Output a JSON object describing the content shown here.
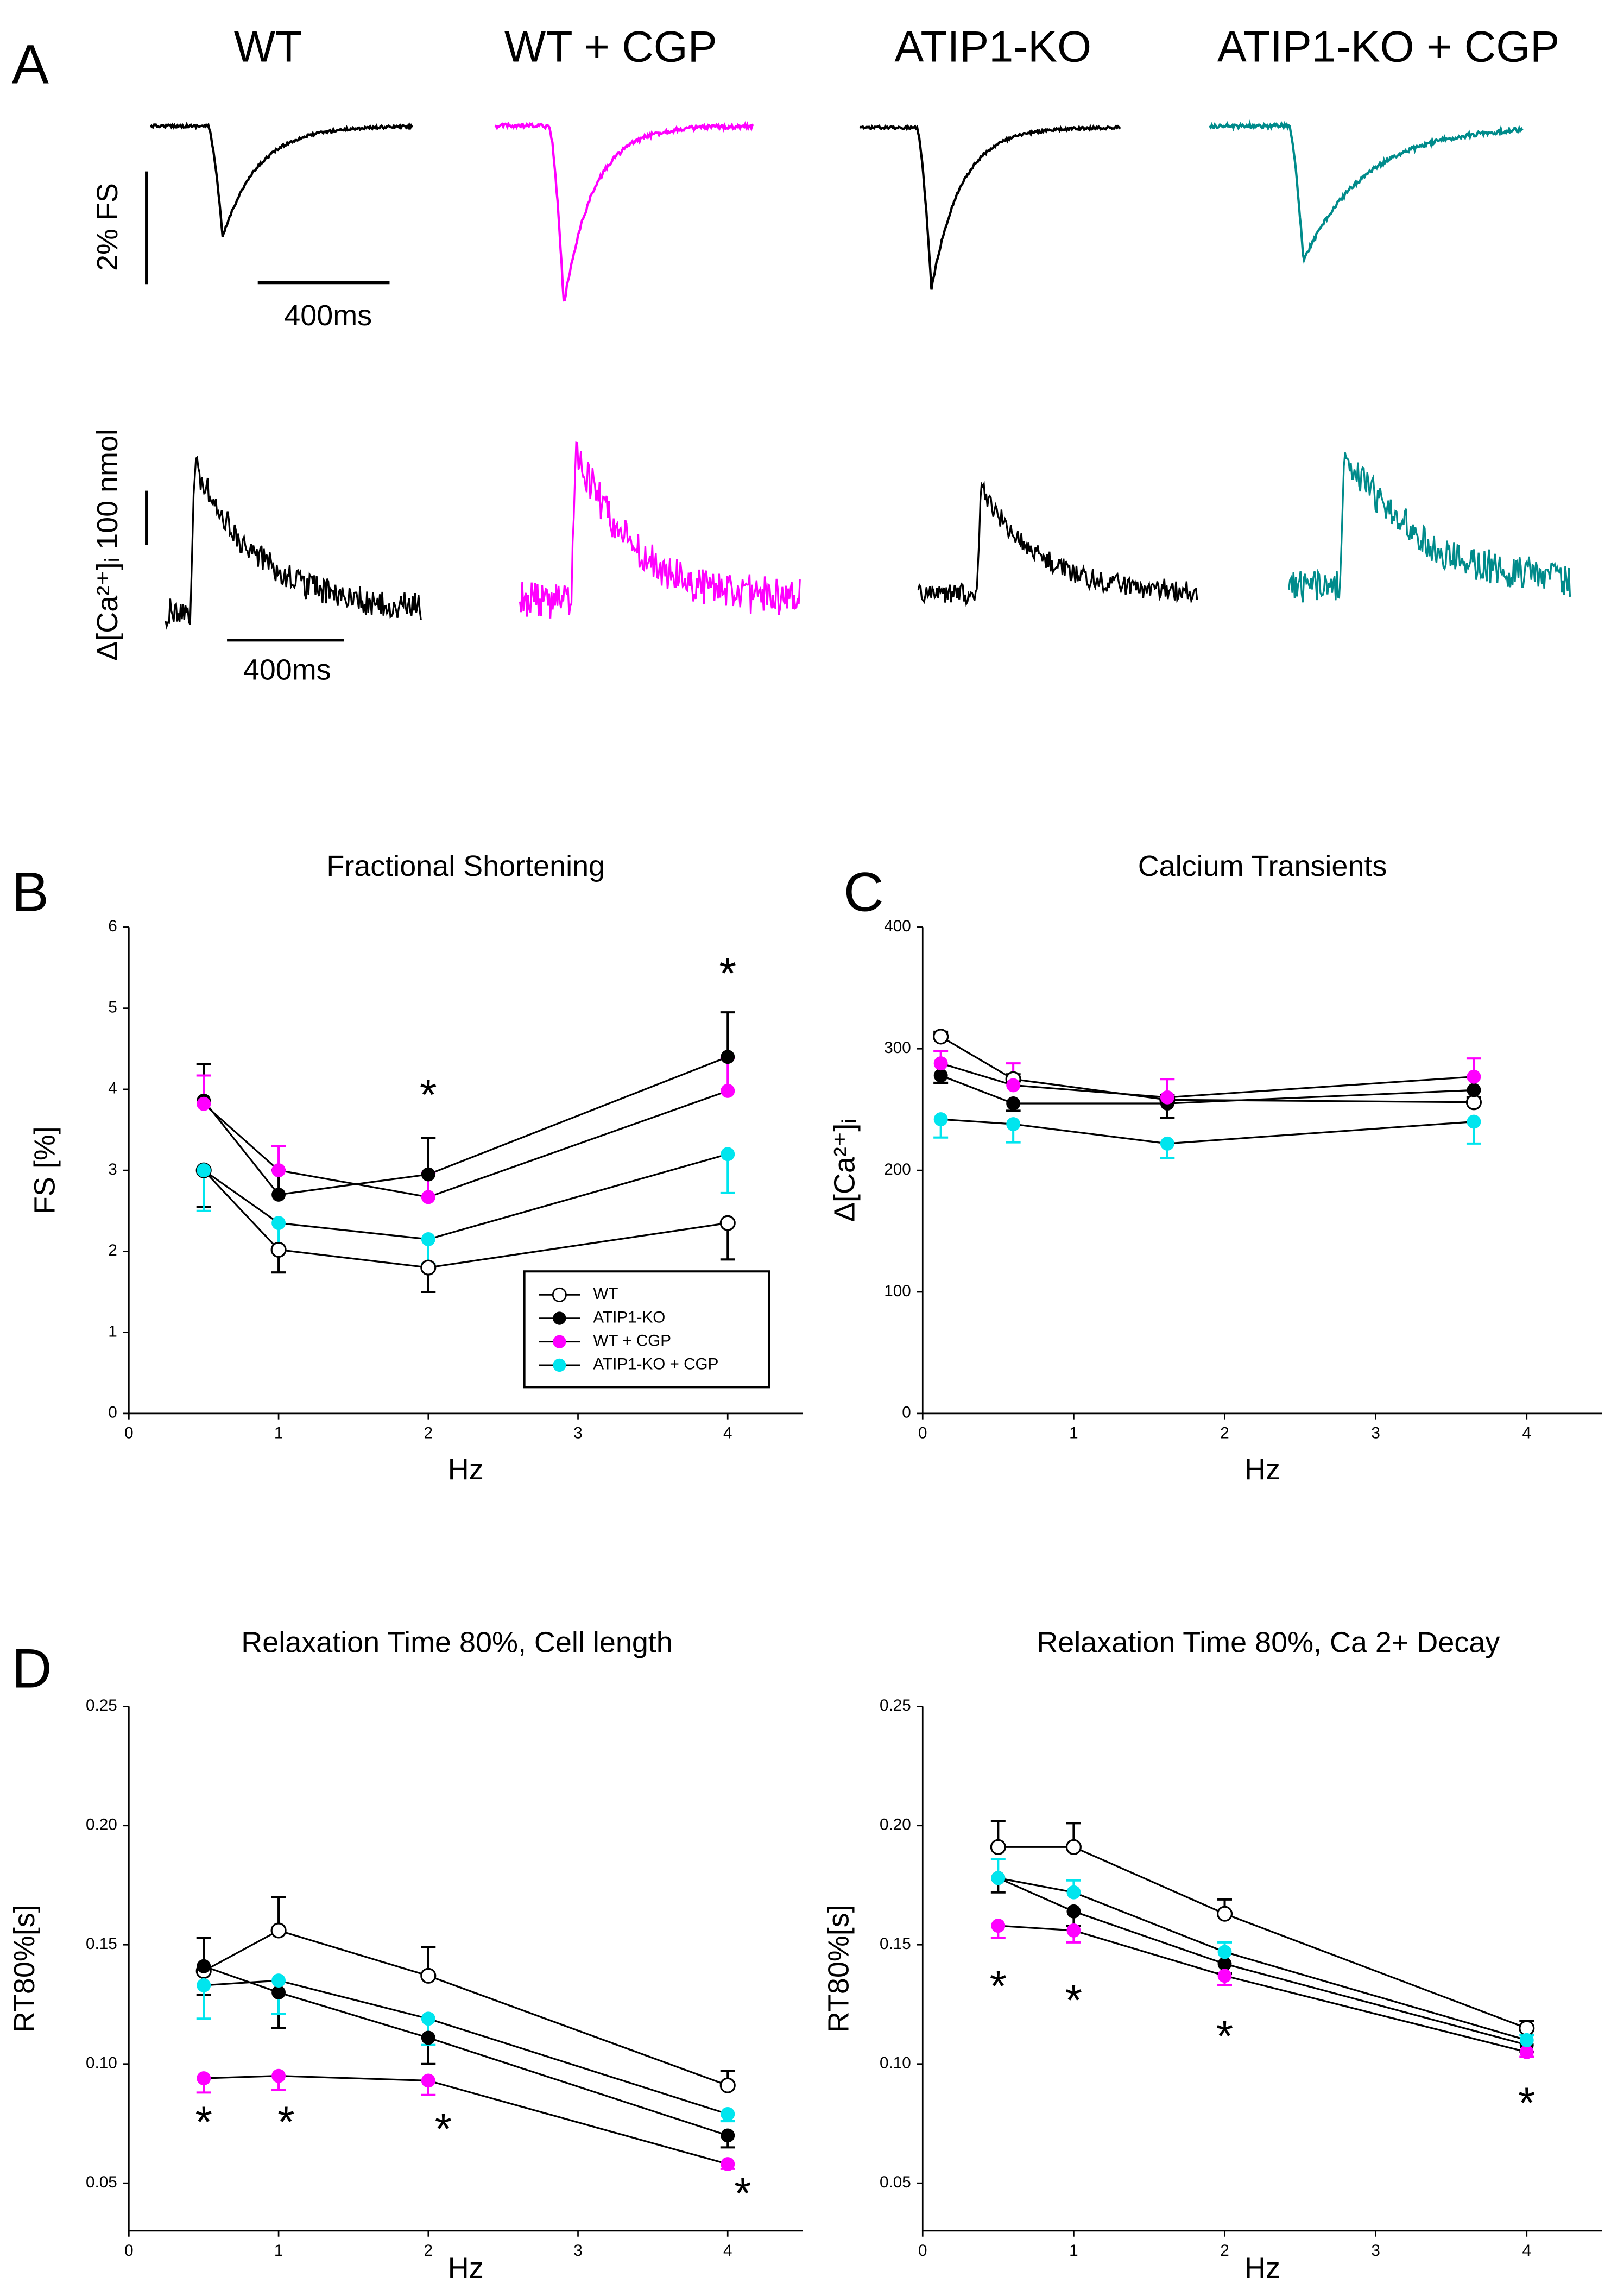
{
  "panel_labels": [
    "A",
    "B",
    "C",
    "D"
  ],
  "panel_a": {
    "titles": [
      "WT",
      "WT + CGP",
      "ATIP1-KO",
      "ATIP1-KO + CGP"
    ],
    "fs_scale_label": "2% FS",
    "fs_time_label": "400ms",
    "ca_scale_label": "Δ[Ca²⁺]ᵢ 100 nmol",
    "ca_time_label": "400ms"
  },
  "chart_data": [
    {
      "type": "line",
      "title": "Fractional Shortening",
      "xlabel": "Hz",
      "ylabel": "FS [%]",
      "x": [
        0.5,
        1,
        2,
        4
      ],
      "xlim": [
        0,
        4.5
      ],
      "xticks": [
        0,
        1,
        2,
        3,
        4
      ],
      "ylim": [
        0,
        6
      ],
      "yticks": [
        0,
        1,
        2,
        3,
        4,
        5,
        6
      ],
      "line_color": "#000000",
      "legend": "lower right",
      "series": [
        {
          "name": "WT",
          "color": "#ffffff",
          "edge": "#000000",
          "values": [
            3.0,
            2.02,
            1.8,
            2.35
          ],
          "errors": [
            0.45,
            0.28,
            0.3,
            0.45
          ],
          "error_direction": "down"
        },
        {
          "name": "ATIP1-KO",
          "color": "#000000",
          "values": [
            3.86,
            2.7,
            2.95,
            4.4
          ],
          "errors": [
            0.45,
            0.3,
            0.45,
            0.55
          ],
          "error_direction": "up"
        },
        {
          "name": "WT + CGP",
          "color": "#ff00ff",
          "values": [
            3.82,
            3.0,
            2.67,
            3.98
          ],
          "errors": [
            0.35,
            0.3,
            0.3,
            0.4
          ],
          "error_direction": "up"
        },
        {
          "name": "ATIP1-KO + CGP",
          "color": "#00e5ee",
          "values": [
            3.0,
            2.35,
            2.15,
            3.2
          ],
          "errors": [
            0.5,
            0.3,
            0.3,
            0.48
          ],
          "error_direction": "down"
        }
      ],
      "annotations": [
        {
          "text": "*",
          "x": 2,
          "y": 4.0
        },
        {
          "text": "*",
          "x": 4,
          "y": 5.5
        }
      ]
    },
    {
      "type": "line",
      "title": "Calcium Transients",
      "xlabel": "Hz",
      "ylabel": "Δ[Ca²⁺]ᵢ",
      "x": [
        0.12,
        0.6,
        1.62,
        3.65
      ],
      "xlim": [
        0,
        4.5
      ],
      "xticks": [
        0,
        1,
        2,
        3,
        4
      ],
      "ylim": [
        0,
        400
      ],
      "yticks": [
        0,
        100,
        200,
        300,
        400
      ],
      "line_color": "#000000",
      "series": [
        {
          "color": "#ffffff",
          "edge": "#000000",
          "values": [
            310,
            275,
            258,
            256
          ],
          "errors": [
            4,
            4,
            4,
            4
          ],
          "error_direction": "up"
        },
        {
          "color": "#000000",
          "values": [
            278,
            255,
            255,
            266
          ],
          "errors": [
            6,
            6,
            12,
            6
          ],
          "error_direction": "down"
        },
        {
          "color": "#ff00ff",
          "values": [
            288,
            270,
            260,
            277
          ],
          "errors": [
            10,
            18,
            15,
            15
          ],
          "error_direction": "up"
        },
        {
          "color": "#00e5ee",
          "values": [
            242,
            238,
            222,
            240
          ],
          "errors": [
            15,
            15,
            12,
            18
          ],
          "error_direction": "down"
        }
      ]
    },
    {
      "type": "line",
      "title": "Relaxation Time 80%, Cell length",
      "xlabel": "Hz",
      "ylabel": "RT80%[s]",
      "x": [
        0.5,
        1,
        2,
        4
      ],
      "xlim": [
        0,
        4.5
      ],
      "xticks": [
        0,
        1,
        2,
        3,
        4
      ],
      "ylim": [
        0.03,
        0.25
      ],
      "yticks": [
        0.05,
        {
          "value": 0.1,
          "label": "0.10"
        },
        0.15,
        {
          "value": 0.2,
          "label": "0.20"
        },
        0.25
      ],
      "line_color": "#000000",
      "series": [
        {
          "color": "#ffffff",
          "edge": "#000000",
          "values": [
            0.139,
            0.156,
            0.137,
            0.091
          ],
          "errors": [
            0.014,
            0.014,
            0.012,
            0.006
          ],
          "error_direction": "up"
        },
        {
          "color": "#000000",
          "values": [
            0.141,
            0.13,
            0.111,
            0.07
          ],
          "errors": [
            0.012,
            0.015,
            0.011,
            0.005
          ],
          "error_direction": "down"
        },
        {
          "color": "#ff00ff",
          "values": [
            0.094,
            0.095,
            0.093,
            0.058
          ],
          "errors": [
            0.006,
            0.006,
            0.006,
            0.002
          ],
          "error_direction": "down"
        },
        {
          "color": "#00e5ee",
          "values": [
            0.133,
            0.135,
            0.119,
            0.079
          ],
          "errors": [
            0.014,
            0.014,
            0.011,
            0.003
          ],
          "error_direction": "down"
        }
      ],
      "annotations": [
        {
          "text": "*",
          "x": 0.5,
          "y": 0.078
        },
        {
          "text": "*",
          "x": 1.05,
          "y": 0.078
        },
        {
          "text": "*",
          "x": 2.1,
          "y": 0.075
        },
        {
          "text": "*",
          "x": 4.1,
          "y": 0.048
        }
      ]
    },
    {
      "type": "line",
      "title": "Relaxation Time 80%, Ca 2+ Decay",
      "xlabel": "Hz",
      "ylabel": "RT80%[s]",
      "x": [
        0.5,
        1,
        2,
        4
      ],
      "xlim": [
        0,
        4.5
      ],
      "xticks": [
        0,
        1,
        2,
        3,
        4
      ],
      "ylim": [
        0.03,
        0.25
      ],
      "yticks": [
        0.05,
        {
          "value": 0.1,
          "label": "0.10"
        },
        0.15,
        {
          "value": 0.2,
          "label": "0.20"
        },
        0.25
      ],
      "line_color": "#000000",
      "series": [
        {
          "color": "#ffffff",
          "edge": "#000000",
          "values": [
            0.191,
            0.191,
            0.163,
            0.115
          ],
          "errors": [
            0.011,
            0.01,
            0.006,
            0.003
          ],
          "error_direction": "up"
        },
        {
          "color": "#000000",
          "values": [
            0.178,
            0.164,
            0.142,
            0.108
          ],
          "errors": [
            0.006,
            0.006,
            0.004,
            0.003
          ],
          "error_direction": "down"
        },
        {
          "color": "#ff00ff",
          "values": [
            0.158,
            0.156,
            0.137,
            0.105
          ],
          "errors": [
            0.005,
            0.005,
            0.004,
            0.002
          ],
          "error_direction": "down"
        },
        {
          "color": "#00e5ee",
          "values": [
            0.178,
            0.172,
            0.147,
            0.11
          ],
          "errors": [
            0.008,
            0.005,
            0.004,
            0.002
          ],
          "error_direction": "up"
        }
      ],
      "annotations": [
        {
          "text": "*",
          "x": 0.5,
          "y": 0.135
        },
        {
          "text": "*",
          "x": 1,
          "y": 0.129
        },
        {
          "text": "*",
          "x": 2,
          "y": 0.114
        },
        {
          "text": "*",
          "x": 4,
          "y": 0.086
        }
      ]
    }
  ]
}
